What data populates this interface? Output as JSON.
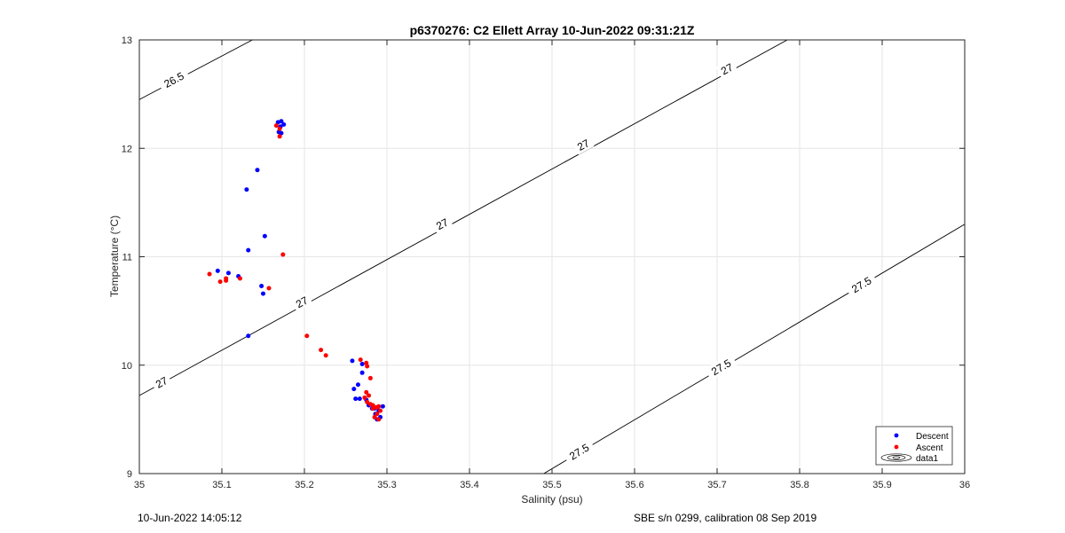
{
  "chart_data": {
    "type": "scatter",
    "title": "p6370276: C2 Ellett Array 10-Jun-2022 09:31:21Z",
    "xlabel": "Salinity (psu)",
    "ylabel": "Temperature (°C)",
    "xlim": [
      35,
      36
    ],
    "ylim": [
      9,
      13
    ],
    "x_ticks": [
      "35",
      "35.1",
      "35.2",
      "35.3",
      "35.4",
      "35.5",
      "35.6",
      "35.7",
      "35.8",
      "35.9",
      "36"
    ],
    "y_ticks": [
      "9",
      "10",
      "11",
      "12",
      "13"
    ],
    "grid": true,
    "legend_position": "bottom-right",
    "series": [
      {
        "name": "Descent",
        "color": "#0000ff",
        "points": [
          [
            35.168,
            12.24
          ],
          [
            35.172,
            12.25
          ],
          [
            35.175,
            12.22
          ],
          [
            35.169,
            12.15
          ],
          [
            35.172,
            12.14
          ],
          [
            35.171,
            12.2
          ],
          [
            35.143,
            11.8
          ],
          [
            35.13,
            11.62
          ],
          [
            35.152,
            11.19
          ],
          [
            35.132,
            11.06
          ],
          [
            35.095,
            10.87
          ],
          [
            35.108,
            10.85
          ],
          [
            35.12,
            10.82
          ],
          [
            35.148,
            10.73
          ],
          [
            35.15,
            10.66
          ],
          [
            35.132,
            10.27
          ],
          [
            35.258,
            10.04
          ],
          [
            35.27,
            10.01
          ],
          [
            35.265,
            9.82
          ],
          [
            35.27,
            9.93
          ],
          [
            35.26,
            9.78
          ],
          [
            35.262,
            9.69
          ],
          [
            35.267,
            9.69
          ],
          [
            35.275,
            9.68
          ],
          [
            35.278,
            9.63
          ],
          [
            35.282,
            9.6
          ],
          [
            35.286,
            9.55
          ],
          [
            35.288,
            9.5
          ],
          [
            35.292,
            9.52
          ],
          [
            35.29,
            9.58
          ],
          [
            35.295,
            9.62
          ],
          [
            35.285,
            9.6
          ]
        ]
      },
      {
        "name": "Ascent",
        "color": "#ff0000",
        "points": [
          [
            35.166,
            12.21
          ],
          [
            35.17,
            12.18
          ],
          [
            35.17,
            12.11
          ],
          [
            35.174,
            11.02
          ],
          [
            35.085,
            10.84
          ],
          [
            35.098,
            10.77
          ],
          [
            35.105,
            10.8
          ],
          [
            35.105,
            10.78
          ],
          [
            35.122,
            10.8
          ],
          [
            35.157,
            10.71
          ],
          [
            35.203,
            10.27
          ],
          [
            35.22,
            10.14
          ],
          [
            35.226,
            10.09
          ],
          [
            35.268,
            10.05
          ],
          [
            35.275,
            10.02
          ],
          [
            35.276,
            9.99
          ],
          [
            35.28,
            9.88
          ],
          [
            35.275,
            9.75
          ],
          [
            35.278,
            9.72
          ],
          [
            35.273,
            9.7
          ],
          [
            35.276,
            9.66
          ],
          [
            35.28,
            9.64
          ],
          [
            35.283,
            9.63
          ],
          [
            35.287,
            9.61
          ],
          [
            35.29,
            9.62
          ],
          [
            35.292,
            9.58
          ],
          [
            35.288,
            9.55
          ],
          [
            35.285,
            9.52
          ],
          [
            35.29,
            9.5
          ],
          [
            35.283,
            9.6
          ]
        ]
      }
    ],
    "density_contours": [
      {
        "color": "#000000",
        "segments": [
          {
            "label": "26.5",
            "from": [
              35.0,
              12.45
            ],
            "to": [
              35.137,
              13.0
            ],
            "label_at": [
              35.045,
              12.63
            ]
          },
          {
            "label": "27",
            "from": [
              35.0,
              9.72
            ],
            "to": [
              35.785,
              13.0
            ]
          },
          {
            "label": "27.5",
            "from": [
              35.49,
              9.0
            ],
            "to": [
              36.0,
              11.3
            ]
          }
        ],
        "labels": [
          {
            "text": "26.5",
            "at": [
              35.042,
              12.63
            ]
          },
          {
            "text": "27",
            "at": [
              35.027,
              9.84
            ]
          },
          {
            "text": "27",
            "at": [
              35.197,
              10.58
            ]
          },
          {
            "text": "27",
            "at": [
              35.367,
              11.3
            ]
          },
          {
            "text": "27",
            "at": [
              35.538,
              12.03
            ]
          },
          {
            "text": "27",
            "at": [
              35.712,
              12.73
            ]
          },
          {
            "text": "27.5",
            "at": [
              35.533,
              9.2
            ]
          },
          {
            "text": "27.5",
            "at": [
              35.705,
              9.98
            ]
          },
          {
            "text": "27.5",
            "at": [
              35.875,
              10.74
            ]
          }
        ]
      }
    ],
    "legend": {
      "entries": [
        "Descent",
        "Ascent",
        "data1"
      ]
    }
  },
  "footer": {
    "left": "10-Jun-2022 14:05:12",
    "right": "SBE s/n 0299, calibration 08 Sep 2019"
  }
}
